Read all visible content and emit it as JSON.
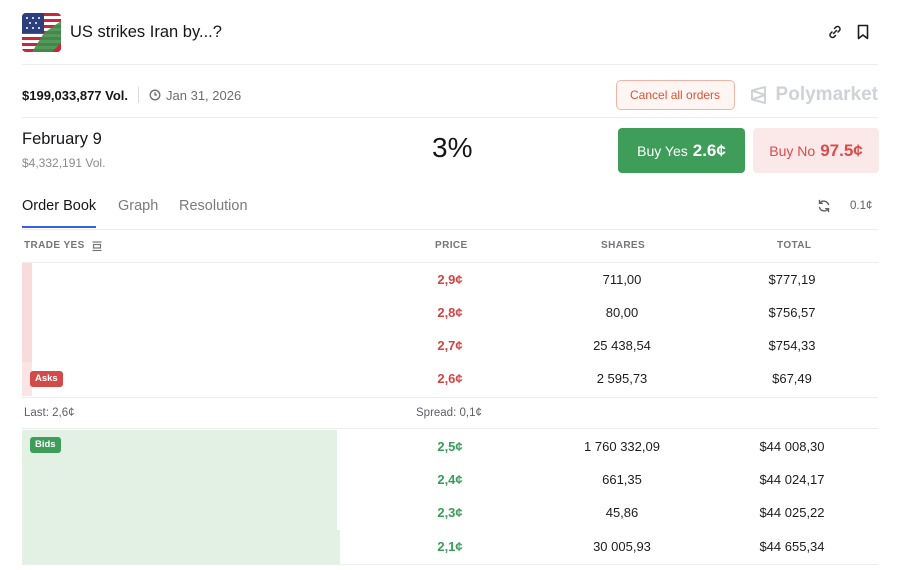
{
  "market": {
    "title": "US strikes Iran by...?",
    "volume": "$199,033,877 Vol.",
    "date": "Jan 31, 2026",
    "cancel_label": "Cancel all orders",
    "brand": "Polymarket",
    "flag_icon": "us-iran-flag-icon"
  },
  "outcome": {
    "name": "February 9",
    "volume": "$4,332,191 Vol.",
    "chance": "3%",
    "buy_yes_label": "Buy Yes",
    "buy_yes_price": "2.6¢",
    "buy_no_label": "Buy No",
    "buy_no_price": "97.5¢"
  },
  "tabs": [
    "Order Book",
    "Graph",
    "Resolution"
  ],
  "active_tab": "Order Book",
  "tick_size": "0.1¢",
  "orderbook": {
    "columns": {
      "trade": "TRADE YES",
      "price": "PRICE",
      "shares": "SHARES",
      "total": "TOTAL"
    },
    "asks_badge": "Asks",
    "bids_badge": "Bids",
    "asks": [
      {
        "price": "2,9¢",
        "shares": "711,00",
        "total": "$777,19"
      },
      {
        "price": "2,8¢",
        "shares": "80,00",
        "total": "$756,57"
      },
      {
        "price": "2,7¢",
        "shares": "25 438,54",
        "total": "$754,33"
      },
      {
        "price": "2,6¢",
        "shares": "2 595,73",
        "total": "$67,49"
      }
    ],
    "last": "Last: 2,6¢",
    "spread": "Spread: 0,1¢",
    "bids": [
      {
        "price": "2,5¢",
        "shares": "1 760 332,09",
        "total": "$44 008,30"
      },
      {
        "price": "2,4¢",
        "shares": "661,35",
        "total": "$44 024,17"
      },
      {
        "price": "2,3¢",
        "shares": "45,86",
        "total": "$44 025,22"
      },
      {
        "price": "2,1¢",
        "shares": "30 005,93",
        "total": "$44 655,34"
      }
    ]
  },
  "colors": {
    "buy_yes": "#3f9d5a",
    "buy_no_bg": "#fbe8e8",
    "ask_text": "#d14545",
    "bid_text": "#3a9c5a",
    "accent": "#3460e6"
  }
}
